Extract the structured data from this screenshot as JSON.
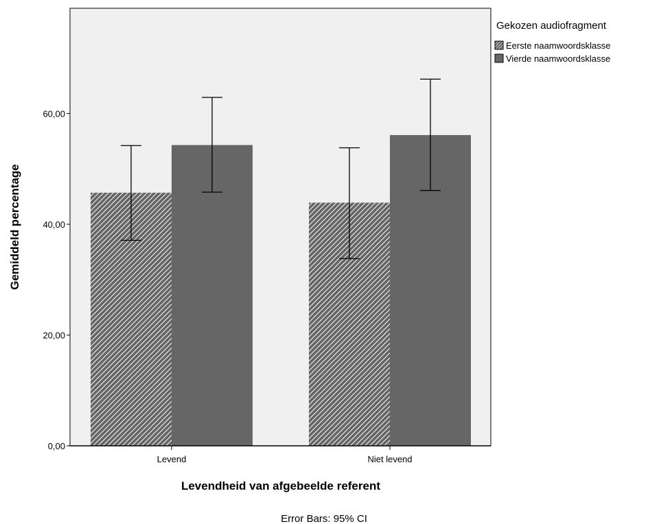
{
  "chart_data": {
    "type": "bar",
    "categories": [
      "Levend",
      "Niet levend"
    ],
    "series": [
      {
        "name": "Eerste naamwoordsklasse",
        "values": [
          45.7,
          43.9
        ],
        "ci_lower": [
          37.1,
          33.8
        ],
        "ci_upper": [
          54.2,
          53.8
        ],
        "fill": "hatched"
      },
      {
        "name": "Vierde naamwoordsklasse",
        "values": [
          54.3,
          56.1
        ],
        "ci_lower": [
          45.8,
          46.1
        ],
        "ci_upper": [
          62.9,
          66.2
        ],
        "fill": "solid"
      }
    ],
    "xlabel": "Levendheid van afgebeelde referent",
    "ylabel": "Gemiddeld percentage",
    "ylim": [
      0,
      79
    ],
    "yticks": [
      0,
      20,
      40,
      60
    ],
    "ytick_labels": [
      "0,00",
      "20,00",
      "40,00",
      "60,00"
    ],
    "legend_title": "Gekozen audiofragment",
    "legend_position": "top-right, outside plot",
    "footnote": "Error Bars: 95% CI",
    "grid": false
  },
  "colors": {
    "plot_background": "#f0f0f0",
    "bar_dark": "#666666",
    "hatch_light": "#ffffff",
    "axis": "#000000"
  }
}
